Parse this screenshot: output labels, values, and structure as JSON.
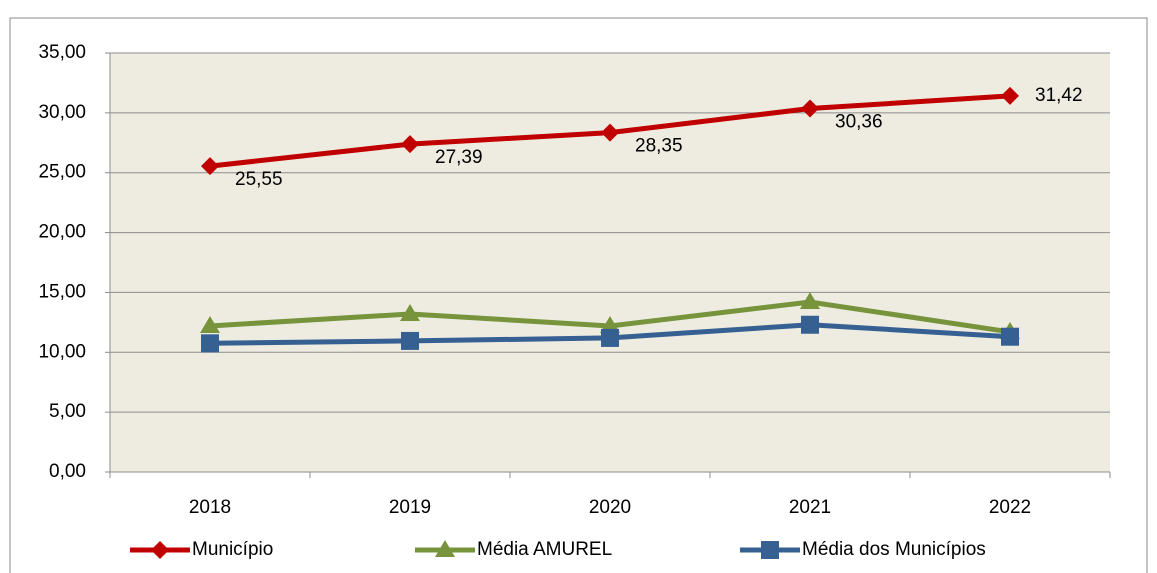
{
  "chart_data": {
    "type": "line",
    "categories": [
      "2018",
      "2019",
      "2020",
      "2021",
      "2022"
    ],
    "series": [
      {
        "name": "Município",
        "color": "#c00000",
        "marker": "diamond",
        "values": [
          25.55,
          27.39,
          28.35,
          30.36,
          31.42
        ],
        "value_labels": [
          "25,55",
          "27,39",
          "28,35",
          "30,36",
          "31,42"
        ]
      },
      {
        "name": "Média AMUREL",
        "color": "#77933c",
        "marker": "triangle",
        "values": [
          12.2,
          13.2,
          12.2,
          14.2,
          11.7
        ]
      },
      {
        "name": "Média dos Municípios",
        "color": "#376092",
        "marker": "square",
        "values": [
          10.75,
          10.95,
          11.2,
          12.3,
          11.3
        ]
      }
    ],
    "ylim": [
      0,
      35
    ],
    "yticks": [
      {
        "value": 0,
        "label": "0,00"
      },
      {
        "value": 5,
        "label": "5,00"
      },
      {
        "value": 10,
        "label": "10,00"
      },
      {
        "value": 15,
        "label": "15,00"
      },
      {
        "value": 20,
        "label": "20,00"
      },
      {
        "value": 25,
        "label": "25,00"
      },
      {
        "value": 30,
        "label": "30,00"
      },
      {
        "value": 35,
        "label": "35,00"
      }
    ],
    "grid": true,
    "legend": "bottom"
  }
}
